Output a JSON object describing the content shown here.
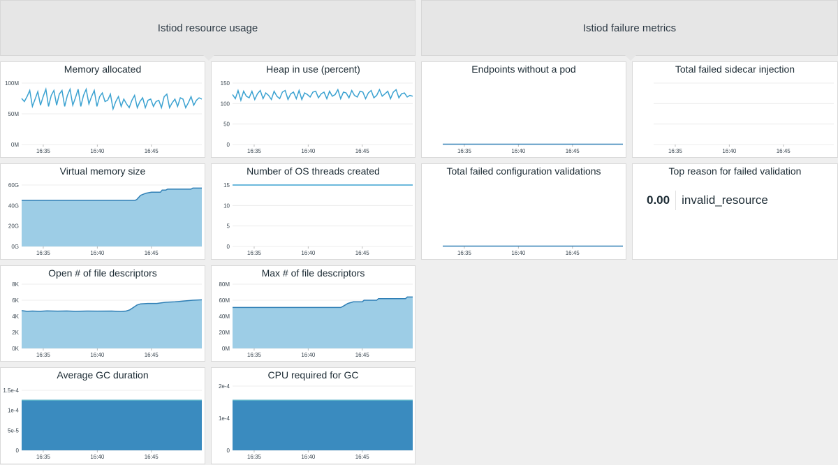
{
  "groups": [
    {
      "title": "Istiod resource usage"
    },
    {
      "title": "Istiod failure metrics"
    }
  ],
  "x_tick_labels": [
    "16:35",
    "16:40",
    "16:45"
  ],
  "colors": {
    "line": "#3ba2d1",
    "area_light": "#9dcde6",
    "area_dark": "#3a8bbf",
    "area_dark_top": "#5ab0c8",
    "flat_line": "#2f7fb5",
    "grid": "#ececec"
  },
  "widgets": {
    "memory_allocated": {
      "title": "Memory allocated",
      "chart_data": {
        "type": "line",
        "title": "Memory allocated",
        "yticks": [
          "100M",
          "50M",
          "0M"
        ],
        "ylim": [
          0,
          120
        ],
        "xticks": [
          "16:35",
          "16:40",
          "16:45"
        ],
        "series": [
          {
            "values": [
              75,
              70,
              78,
              88,
              62,
              74,
              86,
              64,
              78,
              90,
              62,
              80,
              88,
              64,
              82,
              88,
              62,
              80,
              90,
              64,
              76,
              90,
              62,
              80,
              90,
              66,
              78,
              88,
              62,
              78,
              84,
              70,
              72,
              82,
              58,
              70,
              78,
              62,
              74,
              66,
              60,
              72,
              80,
              60,
              70,
              76,
              60,
              72,
              74,
              62,
              70,
              72,
              60,
              78,
              82,
              60,
              68,
              74,
              62,
              76,
              74,
              60,
              68,
              78,
              64,
              72,
              76,
              74
            ]
          }
        ]
      }
    },
    "heap_in_use": {
      "title": "Heap in use (percent)",
      "chart_data": {
        "type": "line",
        "title": "Heap in use (percent)",
        "yticks": [
          "150",
          "100",
          "50",
          "0"
        ],
        "ylim": [
          0,
          160
        ],
        "xticks": [
          "16:35",
          "16:40",
          "16:45"
        ],
        "series": [
          {
            "values": [
              122,
              112,
              132,
              108,
              130,
              118,
              114,
              130,
              110,
              124,
              132,
              112,
              126,
              120,
              110,
              130,
              118,
              112,
              128,
              132,
              110,
              124,
              128,
              112,
              132,
              110,
              126,
              122,
              116,
              128,
              130,
              114,
              124,
              128,
              112,
              130,
              118,
              122,
              134,
              112,
              128,
              126,
              114,
              132,
              120,
              116,
              130,
              128,
              112,
              126,
              132,
              114,
              120,
              134,
              118,
              124,
              130,
              112,
              128,
              134,
              114,
              124,
              126,
              116,
              120,
              118
            ]
          }
        ]
      }
    },
    "endpoints_without_pod": {
      "title": "Endpoints without a pod",
      "chart_data": {
        "type": "line",
        "title": "Endpoints without a pod",
        "xticks": [
          "16:35",
          "16:40",
          "16:45"
        ],
        "series": [
          {
            "values": [
              0,
              0
            ]
          }
        ]
      }
    },
    "failed_sidecar_injection": {
      "title": "Total failed sidecar injection",
      "chart_data": {
        "type": "line",
        "title": "Total failed sidecar injection",
        "xticks": [
          "16:35",
          "16:40",
          "16:45"
        ],
        "series": []
      }
    },
    "virtual_memory_size": {
      "title": "Virtual memory size",
      "chart_data": {
        "type": "area",
        "title": "Virtual memory size",
        "yticks": [
          "60G",
          "40G",
          "20G",
          "0G"
        ],
        "ylim": [
          0,
          66
        ],
        "xticks": [
          "16:35",
          "16:40",
          "16:45"
        ],
        "x": [
          0,
          0.63,
          0.64,
          0.66,
          0.69,
          0.72,
          0.75,
          0.77,
          0.78,
          0.8,
          0.81,
          0.94,
          0.95,
          0.99,
          1
        ],
        "series": [
          {
            "values": [
              45,
              45,
              46,
              50,
              52,
              53,
              53,
              53,
              55,
              55,
              56,
              56,
              57,
              57,
              57
            ]
          }
        ]
      }
    },
    "os_threads_created": {
      "title": "Number of OS threads created",
      "chart_data": {
        "type": "line",
        "title": "Number of OS threads created",
        "yticks": [
          "15",
          "10",
          "5",
          "0"
        ],
        "ylim": [
          0,
          16.5
        ],
        "xticks": [
          "16:35",
          "16:40",
          "16:45"
        ],
        "series": [
          {
            "values": [
              15,
              15
            ]
          }
        ]
      }
    },
    "failed_config_validations": {
      "title": "Total failed configuration validations",
      "chart_data": {
        "type": "line",
        "title": "Total failed configuration validations",
        "xticks": [
          "16:35",
          "16:40",
          "16:45"
        ],
        "series": [
          {
            "values": [
              0,
              0
            ]
          }
        ]
      }
    },
    "top_failed_validation": {
      "title": "Top reason for failed validation",
      "value": "0.00",
      "label": "invalid_resource"
    },
    "open_file_descriptors": {
      "title": "Open # of file descriptors",
      "chart_data": {
        "type": "area",
        "title": "Open # of file descriptors",
        "yticks": [
          "8K",
          "6K",
          "4K",
          "2K",
          "0K"
        ],
        "ylim": [
          0,
          8000
        ],
        "xticks": [
          "16:35",
          "16:40",
          "16:45"
        ],
        "x": [
          0,
          0.03,
          0.06,
          0.1,
          0.14,
          0.2,
          0.25,
          0.3,
          0.36,
          0.42,
          0.5,
          0.55,
          0.58,
          0.6,
          0.62,
          0.64,
          0.66,
          0.7,
          0.75,
          0.8,
          0.85,
          0.9,
          0.95,
          1
        ],
        "series": [
          {
            "values": [
              4700,
              4620,
              4650,
              4620,
              4680,
              4640,
              4660,
              4620,
              4650,
              4640,
              4650,
              4600,
              4650,
              4800,
              5100,
              5400,
              5550,
              5600,
              5600,
              5750,
              5800,
              5900,
              6000,
              6050
            ]
          }
        ]
      }
    },
    "max_file_descriptors": {
      "title": "Max # of file descriptors",
      "chart_data": {
        "type": "area",
        "title": "Max # of file descriptors",
        "yticks": [
          "80M",
          "60M",
          "40M",
          "20M",
          "0M"
        ],
        "ylim": [
          0,
          80
        ],
        "xticks": [
          "16:35",
          "16:40",
          "16:45"
        ],
        "x": [
          0,
          0.6,
          0.61,
          0.64,
          0.67,
          0.72,
          0.73,
          0.8,
          0.81,
          0.96,
          0.97,
          1
        ],
        "series": [
          {
            "values": [
              51,
              51,
              52,
              56,
              58,
              58,
              60,
              60,
              62,
              62,
              64,
              64
            ]
          }
        ]
      }
    },
    "avg_gc_duration": {
      "title": "Average GC duration",
      "chart_data": {
        "type": "area",
        "title": "Average GC duration",
        "yticks": [
          "1.5e-4",
          "1e-4",
          "5e-5",
          "0"
        ],
        "ylim": [
          0,
          0.00015
        ],
        "xticks": [
          "16:35",
          "16:40",
          "16:45"
        ],
        "series": [
          {
            "values": [
              0.000125,
              0.000125
            ]
          }
        ]
      }
    },
    "cpu_required_gc": {
      "title": "CPU required for GC",
      "chart_data": {
        "type": "area",
        "title": "CPU required for GC",
        "yticks": [
          "2e-4",
          "1e-4",
          "0"
        ],
        "ylim": [
          0,
          0.0002
        ],
        "xticks": [
          "16:35",
          "16:40",
          "16:45"
        ],
        "series": [
          {
            "values": [
              0.000156,
              0.000156
            ]
          }
        ]
      }
    }
  }
}
